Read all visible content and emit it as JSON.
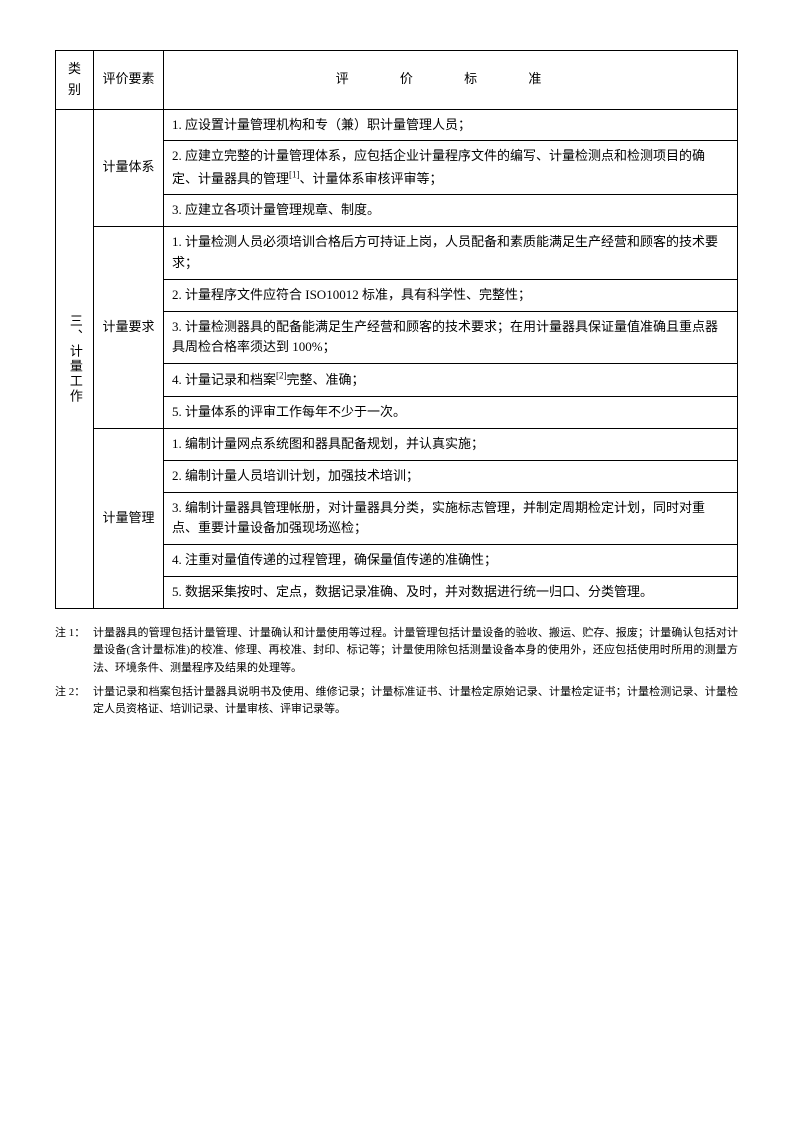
{
  "table": {
    "headers": {
      "category": "类别",
      "element": "评价要素",
      "standard": "评 价 标 准"
    },
    "category": "三、计量工作",
    "sections": [
      {
        "element": "计量体系",
        "rows": [
          "1. 应设置计量管理机构和专（兼）职计量管理人员；",
          "2. 应建立完整的计量管理体系，应包括企业计量程序文件的编写、计量检测点和检测项目的确定、计量器具的管理[1]、计量体系审核评审等；",
          "3. 应建立各项计量管理规章、制度。"
        ]
      },
      {
        "element": "计量要求",
        "rows": [
          "1. 计量检测人员必须培训合格后方可持证上岗，人员配备和素质能满足生产经营和顾客的技术要求；",
          "2. 计量程序文件应符合 ISO10012 标准，具有科学性、完整性；",
          "3. 计量检测器具的配备能满足生产经营和顾客的技术要求；在用计量器具保证量值准确且重点器具周检合格率须达到 100%；",
          "4. 计量记录和档案[2]完整、准确；",
          "5. 计量体系的评审工作每年不少于一次。"
        ]
      },
      {
        "element": "计量管理",
        "rows": [
          "1. 编制计量网点系统图和器具配备规划，并认真实施；",
          "2. 编制计量人员培训计划，加强技术培训；",
          "3. 编制计量器具管理帐册，对计量器具分类，实施标志管理，并制定周期检定计划，同时对重点、重要计量设备加强现场巡检；",
          "4. 注重对量值传递的过程管理，确保量值传递的准确性；",
          "5. 数据采集按时、定点，数据记录准确、及时，并对数据进行统一归口、分类管理。"
        ]
      }
    ]
  },
  "notes": [
    {
      "label": "注 1：",
      "text": "计量器具的管理包括计量管理、计量确认和计量使用等过程。计量管理包括计量设备的验收、搬运、贮存、报废；计量确认包括对计量设备(含计量标准)的校准、修理、再校准、封印、标记等；计量使用除包括测量设备本身的使用外，还应包括使用时所用的测量方法、环境条件、测量程序及结果的处理等。"
    },
    {
      "label": "注 2：",
      "text": "计量记录和档案包括计量器具说明书及使用、维修记录；计量标准证书、计量检定原始记录、计量检定证书；计量检测记录、计量检定人员资格证、培训记录、计量审核、评审记录等。"
    }
  ]
}
